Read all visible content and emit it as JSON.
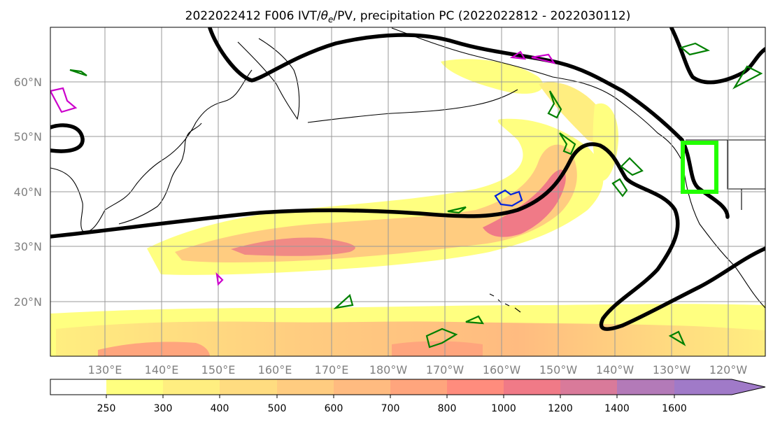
{
  "title": {
    "prefix": "2022022412 F006 IVT/",
    "theta": "θ",
    "theta_sub": "e",
    "suffix": "/PV, precipitation PC (2022022812 - 2022030112)"
  },
  "lat_labels": [
    "60°N",
    "50°N",
    "40°N",
    "30°N",
    "20°N"
  ],
  "lon_labels": [
    "130°E",
    "140°E",
    "150°E",
    "160°E",
    "170°E",
    "180°W",
    "170°W",
    "160°W",
    "150°W",
    "140°W",
    "130°W",
    "120°W"
  ],
  "colorbar": {
    "ticks": [
      "250",
      "300",
      "400",
      "500",
      "600",
      "700",
      "800",
      "1000",
      "1200",
      "1400",
      "1600"
    ],
    "colors": [
      "#ffffff",
      "#ffff80",
      "#ffee80",
      "#ffdc80",
      "#ffcc80",
      "#ffbb80",
      "#ffa57d",
      "#ff8c7d",
      "#f07a87",
      "#d97a9a",
      "#b37ab8",
      "#a07ac8"
    ]
  },
  "colors": {
    "land_outline": "#000000",
    "contour_thick": "#000000",
    "pv_green": "#008000",
    "pv_magenta": "#cc00cc",
    "pv_blue": "#0022dd",
    "highlight_box": "#22ff00",
    "grid": "#999999",
    "axis_label": "#808080"
  }
}
